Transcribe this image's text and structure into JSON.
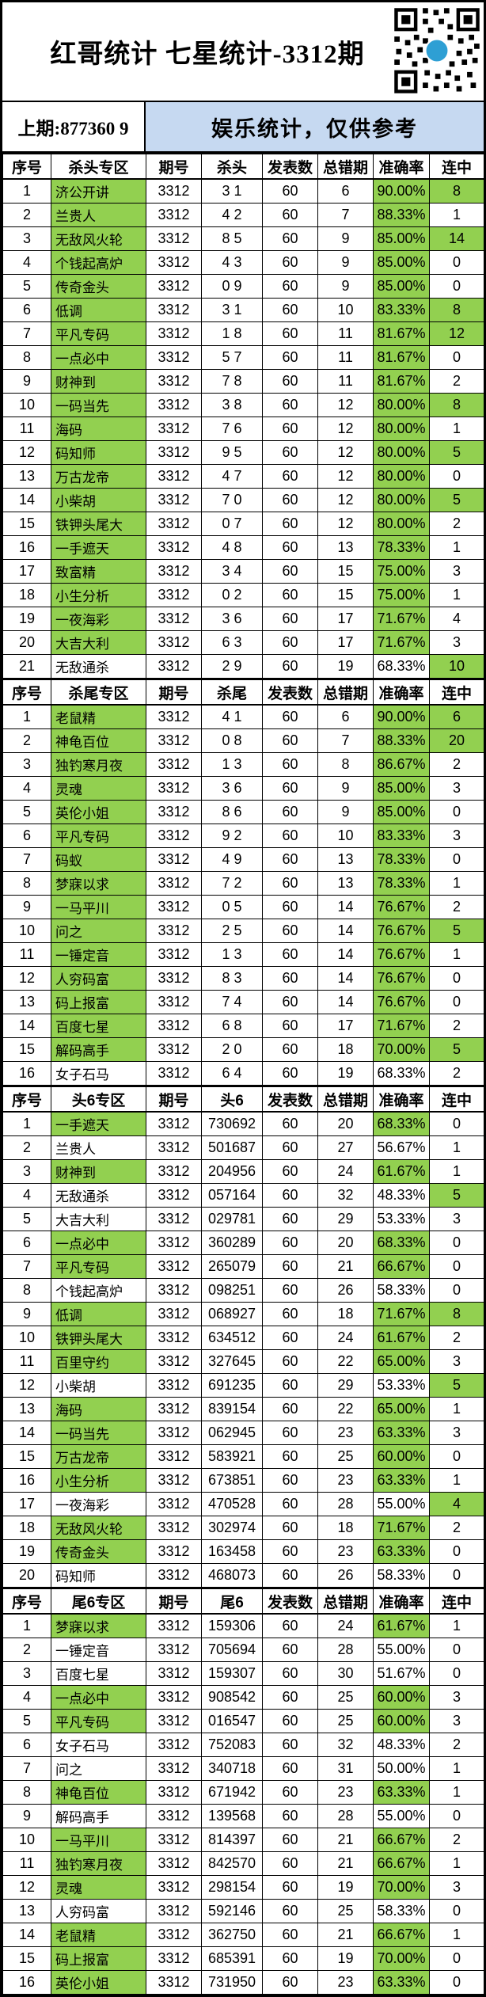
{
  "page": {
    "title": "红哥统计 七星统计-3312期",
    "last_issue": "上期:877360 9",
    "banner": "娱乐统计，仅供参考"
  },
  "icons": {
    "qr": "qr-code"
  },
  "colors": {
    "highlight_green": "#92d050",
    "banner_blue": "#c6d9f1",
    "border_black": "#000000",
    "qr_logo_blue": "#2e9fd4"
  },
  "shared_columns": {
    "no": "序号",
    "issue": "期号",
    "published": "发表数",
    "errors": "总错期",
    "accuracy": "准确率",
    "streak": "连中"
  },
  "row_fields": [
    "no",
    "name",
    "issue",
    "value",
    "published",
    "errors",
    "accuracy",
    "streak",
    "highlight_flags(name,accuracy,streak)"
  ],
  "tables": [
    {
      "zone_header": "杀头专区",
      "value_header": "杀头",
      "rows": [
        [
          "1",
          "济公开讲",
          "3312",
          "3 1",
          "60",
          "6",
          "90.00%",
          "8",
          [
            1,
            1,
            1
          ]
        ],
        [
          "2",
          "兰贵人",
          "3312",
          "4 2",
          "60",
          "7",
          "88.33%",
          "1",
          [
            1,
            1,
            0
          ]
        ],
        [
          "3",
          "无敌风火轮",
          "3312",
          "8 5",
          "60",
          "9",
          "85.00%",
          "14",
          [
            1,
            1,
            1
          ]
        ],
        [
          "4",
          "个钱起高炉",
          "3312",
          "4 3",
          "60",
          "9",
          "85.00%",
          "0",
          [
            1,
            1,
            0
          ]
        ],
        [
          "5",
          "传奇金头",
          "3312",
          "0 9",
          "60",
          "9",
          "85.00%",
          "0",
          [
            1,
            1,
            0
          ]
        ],
        [
          "6",
          "低调",
          "3312",
          "3 1",
          "60",
          "10",
          "83.33%",
          "8",
          [
            1,
            1,
            1
          ]
        ],
        [
          "7",
          "平凡专码",
          "3312",
          "1 8",
          "60",
          "11",
          "81.67%",
          "12",
          [
            1,
            1,
            1
          ]
        ],
        [
          "8",
          "一点必中",
          "3312",
          "5 7",
          "60",
          "11",
          "81.67%",
          "0",
          [
            1,
            1,
            0
          ]
        ],
        [
          "9",
          "财神到",
          "3312",
          "7 8",
          "60",
          "11",
          "81.67%",
          "2",
          [
            1,
            1,
            0
          ]
        ],
        [
          "10",
          "一码当先",
          "3312",
          "3 8",
          "60",
          "12",
          "80.00%",
          "8",
          [
            1,
            1,
            1
          ]
        ],
        [
          "11",
          "海码",
          "3312",
          "7 6",
          "60",
          "12",
          "80.00%",
          "1",
          [
            1,
            1,
            0
          ]
        ],
        [
          "12",
          "码知师",
          "3312",
          "9 5",
          "60",
          "12",
          "80.00%",
          "5",
          [
            1,
            1,
            1
          ]
        ],
        [
          "13",
          "万古龙帝",
          "3312",
          "4 7",
          "60",
          "12",
          "80.00%",
          "0",
          [
            1,
            1,
            0
          ]
        ],
        [
          "14",
          "小柴胡",
          "3312",
          "7 0",
          "60",
          "12",
          "80.00%",
          "5",
          [
            1,
            1,
            1
          ]
        ],
        [
          "15",
          "铁钾头尾大",
          "3312",
          "0 7",
          "60",
          "12",
          "80.00%",
          "2",
          [
            1,
            1,
            0
          ]
        ],
        [
          "16",
          "一手遮天",
          "3312",
          "4 8",
          "60",
          "13",
          "78.33%",
          "1",
          [
            1,
            1,
            0
          ]
        ],
        [
          "17",
          "致富精",
          "3312",
          "3 4",
          "60",
          "15",
          "75.00%",
          "3",
          [
            1,
            1,
            0
          ]
        ],
        [
          "18",
          "小生分析",
          "3312",
          "0 2",
          "60",
          "15",
          "75.00%",
          "1",
          [
            1,
            1,
            0
          ]
        ],
        [
          "19",
          "一夜海彩",
          "3312",
          "3 6",
          "60",
          "17",
          "71.67%",
          "4",
          [
            1,
            1,
            0
          ]
        ],
        [
          "20",
          "大吉大利",
          "3312",
          "6 3",
          "60",
          "17",
          "71.67%",
          "3",
          [
            1,
            1,
            0
          ]
        ],
        [
          "21",
          "无敌通杀",
          "3312",
          "2 9",
          "60",
          "19",
          "68.33%",
          "10",
          [
            0,
            0,
            1
          ]
        ]
      ]
    },
    {
      "zone_header": "杀尾专区",
      "value_header": "杀尾",
      "rows": [
        [
          "1",
          "老鼠精",
          "3312",
          "4 1",
          "60",
          "6",
          "90.00%",
          "6",
          [
            1,
            1,
            1
          ]
        ],
        [
          "2",
          "神龟百位",
          "3312",
          "0 8",
          "60",
          "7",
          "88.33%",
          "20",
          [
            1,
            1,
            1
          ]
        ],
        [
          "3",
          "独钓寒月夜",
          "3312",
          "1 3",
          "60",
          "8",
          "86.67%",
          "2",
          [
            1,
            1,
            0
          ]
        ],
        [
          "4",
          "灵魂",
          "3312",
          "3 6",
          "60",
          "9",
          "85.00%",
          "3",
          [
            1,
            1,
            0
          ]
        ],
        [
          "5",
          "英伦小姐",
          "3312",
          "8 6",
          "60",
          "9",
          "85.00%",
          "0",
          [
            1,
            1,
            0
          ]
        ],
        [
          "6",
          "平凡专码",
          "3312",
          "9 2",
          "60",
          "10",
          "83.33%",
          "3",
          [
            1,
            1,
            0
          ]
        ],
        [
          "7",
          "码蚁",
          "3312",
          "4 9",
          "60",
          "13",
          "78.33%",
          "0",
          [
            1,
            1,
            0
          ]
        ],
        [
          "8",
          "梦寐以求",
          "3312",
          "7 2",
          "60",
          "13",
          "78.33%",
          "1",
          [
            1,
            1,
            0
          ]
        ],
        [
          "9",
          "一马平川",
          "3312",
          "0 5",
          "60",
          "14",
          "76.67%",
          "2",
          [
            1,
            1,
            0
          ]
        ],
        [
          "10",
          "问之",
          "3312",
          "2 5",
          "60",
          "14",
          "76.67%",
          "5",
          [
            1,
            1,
            1
          ]
        ],
        [
          "11",
          "一锤定音",
          "3312",
          "1 3",
          "60",
          "14",
          "76.67%",
          "1",
          [
            1,
            1,
            0
          ]
        ],
        [
          "12",
          "人穷码富",
          "3312",
          "8 3",
          "60",
          "14",
          "76.67%",
          "0",
          [
            1,
            1,
            0
          ]
        ],
        [
          "13",
          "码上报富",
          "3312",
          "7 4",
          "60",
          "14",
          "76.67%",
          "0",
          [
            1,
            1,
            0
          ]
        ],
        [
          "14",
          "百度七星",
          "3312",
          "6 8",
          "60",
          "17",
          "71.67%",
          "2",
          [
            1,
            1,
            0
          ]
        ],
        [
          "15",
          "解码高手",
          "3312",
          "2 0",
          "60",
          "18",
          "70.00%",
          "5",
          [
            1,
            1,
            1
          ]
        ],
        [
          "16",
          "女子石马",
          "3312",
          "6 4",
          "60",
          "19",
          "68.33%",
          "2",
          [
            0,
            0,
            0
          ]
        ]
      ]
    },
    {
      "zone_header": "头6专区",
      "value_header": "头6",
      "rows": [
        [
          "1",
          "一手遮天",
          "3312",
          "730692",
          "60",
          "20",
          "68.33%",
          "0",
          [
            1,
            1,
            0
          ]
        ],
        [
          "2",
          "兰贵人",
          "3312",
          "501687",
          "60",
          "27",
          "56.67%",
          "1",
          [
            0,
            0,
            0
          ]
        ],
        [
          "3",
          "财神到",
          "3312",
          "204956",
          "60",
          "24",
          "61.67%",
          "1",
          [
            1,
            1,
            0
          ]
        ],
        [
          "4",
          "无敌通杀",
          "3312",
          "057164",
          "60",
          "32",
          "48.33%",
          "5",
          [
            0,
            0,
            1
          ]
        ],
        [
          "5",
          "大吉大利",
          "3312",
          "029781",
          "60",
          "29",
          "53.33%",
          "3",
          [
            0,
            0,
            0
          ]
        ],
        [
          "6",
          "一点必中",
          "3312",
          "360289",
          "60",
          "20",
          "68.33%",
          "0",
          [
            1,
            1,
            0
          ]
        ],
        [
          "7",
          "平凡专码",
          "3312",
          "265079",
          "60",
          "21",
          "66.67%",
          "0",
          [
            1,
            1,
            0
          ]
        ],
        [
          "8",
          "个钱起高炉",
          "3312",
          "098251",
          "60",
          "26",
          "58.33%",
          "0",
          [
            0,
            0,
            0
          ]
        ],
        [
          "9",
          "低调",
          "3312",
          "068927",
          "60",
          "18",
          "71.67%",
          "8",
          [
            1,
            1,
            1
          ]
        ],
        [
          "10",
          "铁钾头尾大",
          "3312",
          "634512",
          "60",
          "24",
          "61.67%",
          "2",
          [
            1,
            1,
            0
          ]
        ],
        [
          "11",
          "百里守约",
          "3312",
          "327645",
          "60",
          "22",
          "65.00%",
          "3",
          [
            1,
            1,
            0
          ]
        ],
        [
          "12",
          "小柴胡",
          "3312",
          "691235",
          "60",
          "29",
          "53.33%",
          "5",
          [
            0,
            0,
            1
          ]
        ],
        [
          "13",
          "海码",
          "3312",
          "839154",
          "60",
          "22",
          "65.00%",
          "1",
          [
            1,
            1,
            0
          ]
        ],
        [
          "14",
          "一码当先",
          "3312",
          "062945",
          "60",
          "23",
          "63.33%",
          "3",
          [
            1,
            1,
            0
          ]
        ],
        [
          "15",
          "万古龙帝",
          "3312",
          "583921",
          "60",
          "25",
          "60.00%",
          "0",
          [
            1,
            1,
            0
          ]
        ],
        [
          "16",
          "小生分析",
          "3312",
          "673851",
          "60",
          "23",
          "63.33%",
          "1",
          [
            1,
            1,
            0
          ]
        ],
        [
          "17",
          "一夜海彩",
          "3312",
          "470528",
          "60",
          "28",
          "55.00%",
          "4",
          [
            0,
            0,
            1
          ]
        ],
        [
          "18",
          "无敌风火轮",
          "3312",
          "302974",
          "60",
          "18",
          "71.67%",
          "2",
          [
            1,
            1,
            0
          ]
        ],
        [
          "19",
          "传奇金头",
          "3312",
          "163458",
          "60",
          "23",
          "63.33%",
          "0",
          [
            1,
            1,
            0
          ]
        ],
        [
          "20",
          "码知师",
          "3312",
          "468073",
          "60",
          "26",
          "58.33%",
          "0",
          [
            0,
            0,
            0
          ]
        ]
      ]
    },
    {
      "zone_header": "尾6专区",
      "value_header": "尾6",
      "rows": [
        [
          "1",
          "梦寐以求",
          "3312",
          "159306",
          "60",
          "24",
          "61.67%",
          "1",
          [
            1,
            1,
            0
          ]
        ],
        [
          "2",
          "一锤定音",
          "3312",
          "705694",
          "60",
          "28",
          "55.00%",
          "0",
          [
            0,
            0,
            0
          ]
        ],
        [
          "3",
          "百度七星",
          "3312",
          "159307",
          "60",
          "30",
          "51.67%",
          "0",
          [
            0,
            0,
            0
          ]
        ],
        [
          "4",
          "一点必中",
          "3312",
          "908542",
          "60",
          "25",
          "60.00%",
          "3",
          [
            1,
            1,
            0
          ]
        ],
        [
          "5",
          "平凡专码",
          "3312",
          "016547",
          "60",
          "25",
          "60.00%",
          "3",
          [
            1,
            1,
            0
          ]
        ],
        [
          "6",
          "女子石马",
          "3312",
          "752083",
          "60",
          "32",
          "48.33%",
          "2",
          [
            0,
            0,
            0
          ]
        ],
        [
          "7",
          "问之",
          "3312",
          "340718",
          "60",
          "31",
          "50.00%",
          "1",
          [
            0,
            0,
            0
          ]
        ],
        [
          "8",
          "神龟百位",
          "3312",
          "671942",
          "60",
          "23",
          "63.33%",
          "1",
          [
            1,
            1,
            0
          ]
        ],
        [
          "9",
          "解码高手",
          "3312",
          "139568",
          "60",
          "28",
          "55.00%",
          "0",
          [
            0,
            0,
            0
          ]
        ],
        [
          "10",
          "一马平川",
          "3312",
          "814397",
          "60",
          "21",
          "66.67%",
          "2",
          [
            1,
            1,
            0
          ]
        ],
        [
          "11",
          "独钓寒月夜",
          "3312",
          "842570",
          "60",
          "21",
          "66.67%",
          "1",
          [
            1,
            1,
            0
          ]
        ],
        [
          "12",
          "灵魂",
          "3312",
          "298154",
          "60",
          "19",
          "70.00%",
          "3",
          [
            1,
            1,
            0
          ]
        ],
        [
          "13",
          "人穷码富",
          "3312",
          "592146",
          "60",
          "25",
          "58.33%",
          "0",
          [
            0,
            0,
            0
          ]
        ],
        [
          "14",
          "老鼠精",
          "3312",
          "362750",
          "60",
          "21",
          "66.67%",
          "1",
          [
            1,
            1,
            0
          ]
        ],
        [
          "15",
          "码上报富",
          "3312",
          "685391",
          "60",
          "19",
          "70.00%",
          "0",
          [
            1,
            1,
            0
          ]
        ],
        [
          "16",
          "英伦小姐",
          "3312",
          "731950",
          "60",
          "23",
          "63.33%",
          "0",
          [
            1,
            1,
            0
          ]
        ]
      ]
    }
  ]
}
